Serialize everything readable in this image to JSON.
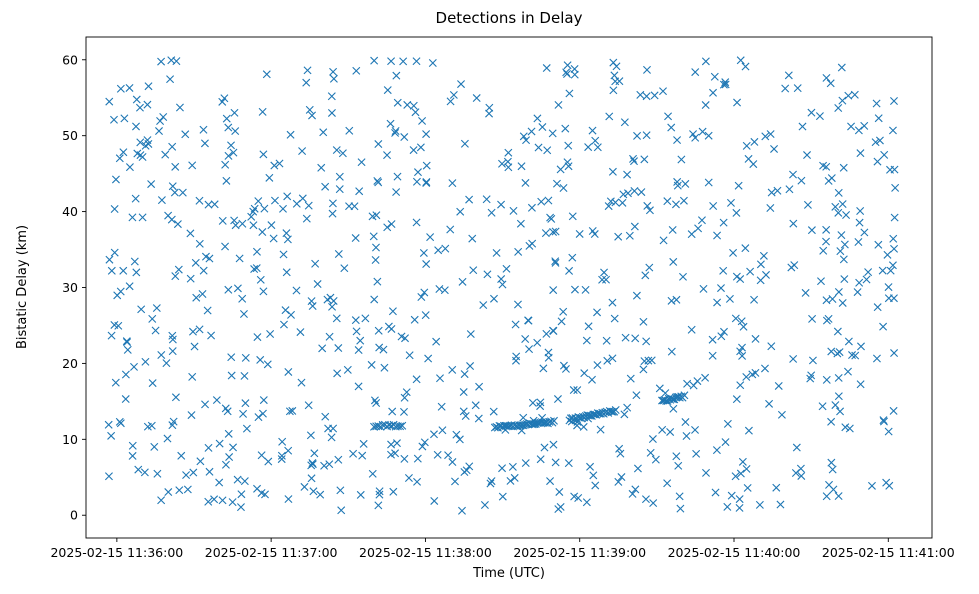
{
  "chart_data": {
    "type": "scatter",
    "title": "Detections in Delay",
    "xlabel": "Time (UTC)",
    "ylabel": "Bistatic Delay (km)",
    "marker": "x",
    "color": "#1f77b4",
    "grid": false,
    "x_ticks": [
      "2025-02-15 11:36:00",
      "2025-02-15 11:37:00",
      "2025-02-15 11:38:00",
      "2025-02-15 11:39:00",
      "2025-02-15 11:40:00",
      "2025-02-15 11:41:00"
    ],
    "y_ticks": [
      "0",
      "10",
      "20",
      "30",
      "40",
      "50",
      "60"
    ],
    "xlim": [
      "2025-02-15 11:35:48",
      "2025-02-15 11:41:17"
    ],
    "ylim": [
      -3,
      63
    ],
    "series": [
      {
        "time_range": [
          "2025-02-15 11:35:56",
          "2025-02-15 11:41:03"
        ],
        "delay_range": [
          0.5,
          60
        ],
        "target_tracks": [
          {
            "start": "2025-02-15 11:37:40",
            "end": "2025-02-15 11:37:51",
            "delay_start": 11.8,
            "delay_end": 11.8,
            "points": 14
          },
          {
            "start": "2025-02-15 11:38:27",
            "end": "2025-02-15 11:38:50",
            "delay_start": 11.6,
            "delay_end": 12.3,
            "points": 40
          },
          {
            "start": "2025-02-15 11:38:56",
            "end": "2025-02-15 11:39:14",
            "delay_start": 12.6,
            "delay_end": 13.8,
            "points": 32
          },
          {
            "start": "2025-02-15 11:39:32",
            "end": "2025-02-15 11:39:40",
            "delay_start": 15.0,
            "delay_end": 15.6,
            "points": 16
          }
        ]
      }
    ]
  }
}
